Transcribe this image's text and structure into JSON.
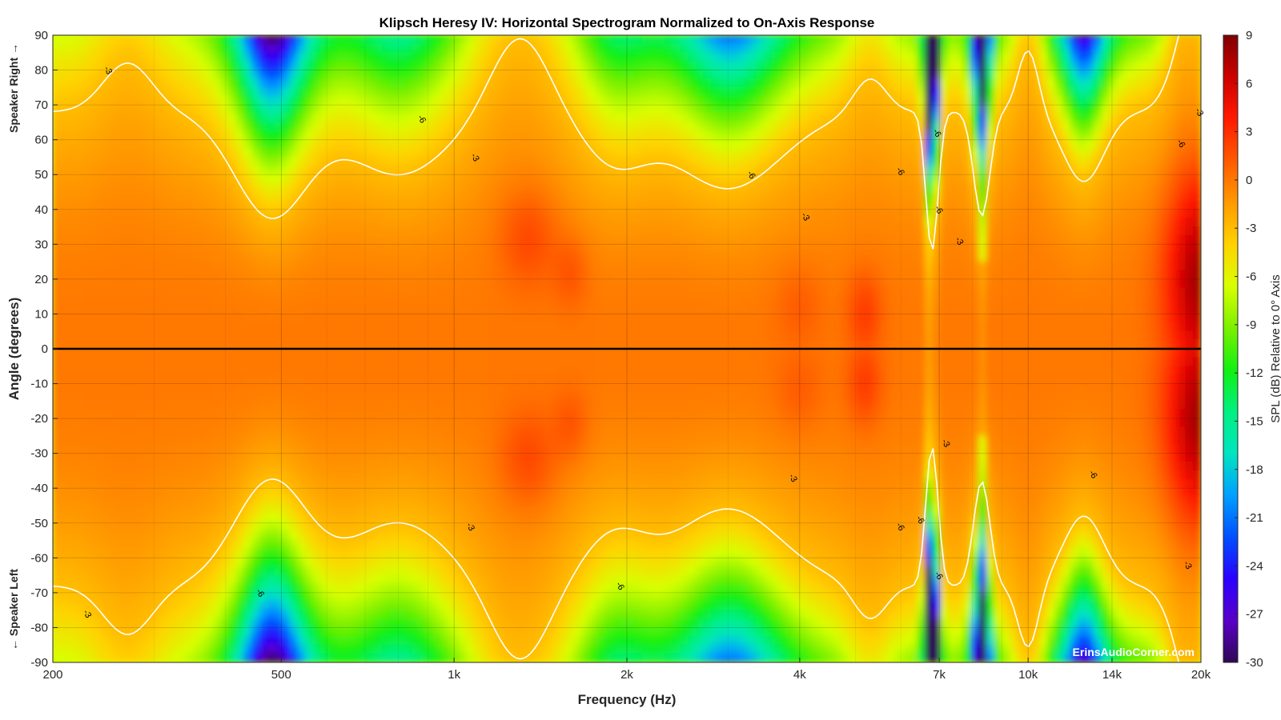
{
  "chart_data": {
    "type": "heatmap",
    "title": "Klipsch Heresy IV: Horizontal Spectrogram Normalized to On-Axis Response",
    "xlabel": "Frequency (Hz)",
    "ylabel": "Angle (degrees)",
    "ylabel_top_note": "Speaker Right →",
    "ylabel_bottom_note": "← Speaker Left",
    "colorbar_label": "SPL (dB) Relative to 0° Axis",
    "watermark": "ErinsAudioCorner.com",
    "x_scale": "log",
    "xlim": [
      200,
      20000
    ],
    "ylim": [
      -90,
      90
    ],
    "zlim": [
      -30,
      9
    ],
    "grid": true,
    "x_ticks": [
      {
        "value": 200,
        "label": "200"
      },
      {
        "value": 500,
        "label": "500"
      },
      {
        "value": 1000,
        "label": "1k"
      },
      {
        "value": 2000,
        "label": "2k"
      },
      {
        "value": 4000,
        "label": "4k"
      },
      {
        "value": 7000,
        "label": "7k"
      },
      {
        "value": 10000,
        "label": "10k"
      },
      {
        "value": 14000,
        "label": "14k"
      },
      {
        "value": 20000,
        "label": "20k"
      }
    ],
    "y_ticks": [
      {
        "value": 90,
        "label": "90"
      },
      {
        "value": 80,
        "label": "80"
      },
      {
        "value": 70,
        "label": "70"
      },
      {
        "value": 60,
        "label": "60"
      },
      {
        "value": 50,
        "label": "50"
      },
      {
        "value": 40,
        "label": "40"
      },
      {
        "value": 30,
        "label": "30"
      },
      {
        "value": 20,
        "label": "20"
      },
      {
        "value": 10,
        "label": "10"
      },
      {
        "value": 0,
        "label": "0"
      },
      {
        "value": -10,
        "label": "-10"
      },
      {
        "value": -20,
        "label": "-20"
      },
      {
        "value": -30,
        "label": "-30"
      },
      {
        "value": -40,
        "label": "-40"
      },
      {
        "value": -50,
        "label": "-50"
      },
      {
        "value": -60,
        "label": "-60"
      },
      {
        "value": -70,
        "label": "-70"
      },
      {
        "value": -80,
        "label": "-80"
      },
      {
        "value": -90,
        "label": "-90"
      }
    ],
    "colorbar_ticks": [
      {
        "value": 9,
        "label": "9"
      },
      {
        "value": 6,
        "label": "6"
      },
      {
        "value": 3,
        "label": "3"
      },
      {
        "value": 0,
        "label": "0"
      },
      {
        "value": -3,
        "label": "-3"
      },
      {
        "value": -6,
        "label": "-6"
      },
      {
        "value": -9,
        "label": "-9"
      },
      {
        "value": -12,
        "label": "-12"
      },
      {
        "value": -15,
        "label": "-15"
      },
      {
        "value": -18,
        "label": "-18"
      },
      {
        "value": -21,
        "label": "-21"
      },
      {
        "value": -24,
        "label": "-24"
      },
      {
        "value": -27,
        "label": "-27"
      },
      {
        "value": -30,
        "label": "-30"
      }
    ],
    "colormap": [
      "#2e0854",
      "#5a00c8",
      "#2a00ff",
      "#0050ff",
      "#00a0ff",
      "#00e5c0",
      "#00f080",
      "#12f012",
      "#7cf000",
      "#d8ff00",
      "#ffd200",
      "#ff9a00",
      "#ff5a00",
      "#ff1a00",
      "#cc0000",
      "#800000"
    ],
    "reference_line": {
      "angle": 0
    },
    "contour_labels": [
      {
        "freq": 250,
        "angle": 80,
        "label": "-3"
      },
      {
        "freq": 880,
        "angle": 66,
        "label": "-6"
      },
      {
        "freq": 1090,
        "angle": 55,
        "label": "-3"
      },
      {
        "freq": 3300,
        "angle": 50,
        "label": "-6"
      },
      {
        "freq": 4100,
        "angle": 38,
        "label": "-3"
      },
      {
        "freq": 6000,
        "angle": 51,
        "label": "-6"
      },
      {
        "freq": 6950,
        "angle": 62,
        "label": "-6"
      },
      {
        "freq": 7000,
        "angle": 40,
        "label": "-6"
      },
      {
        "freq": 7600,
        "angle": 31,
        "label": "-3"
      },
      {
        "freq": 18500,
        "angle": 59,
        "label": "-6"
      },
      {
        "freq": 19900,
        "angle": 68,
        "label": "-3"
      },
      {
        "freq": 230,
        "angle": -76,
        "label": "-3"
      },
      {
        "freq": 460,
        "angle": -70,
        "label": "-6"
      },
      {
        "freq": 1070,
        "angle": -51,
        "label": "-3"
      },
      {
        "freq": 1950,
        "angle": -68,
        "label": "-6"
      },
      {
        "freq": 3900,
        "angle": -37,
        "label": "-3"
      },
      {
        "freq": 6000,
        "angle": -51,
        "label": "-6"
      },
      {
        "freq": 6500,
        "angle": -49,
        "label": "-6"
      },
      {
        "freq": 7000,
        "angle": -65,
        "label": "-6"
      },
      {
        "freq": 7200,
        "angle": -27,
        "label": "-3"
      },
      {
        "freq": 13000,
        "angle": -36,
        "label": "-6"
      },
      {
        "freq": 19000,
        "angle": -62,
        "label": "-3"
      }
    ]
  }
}
